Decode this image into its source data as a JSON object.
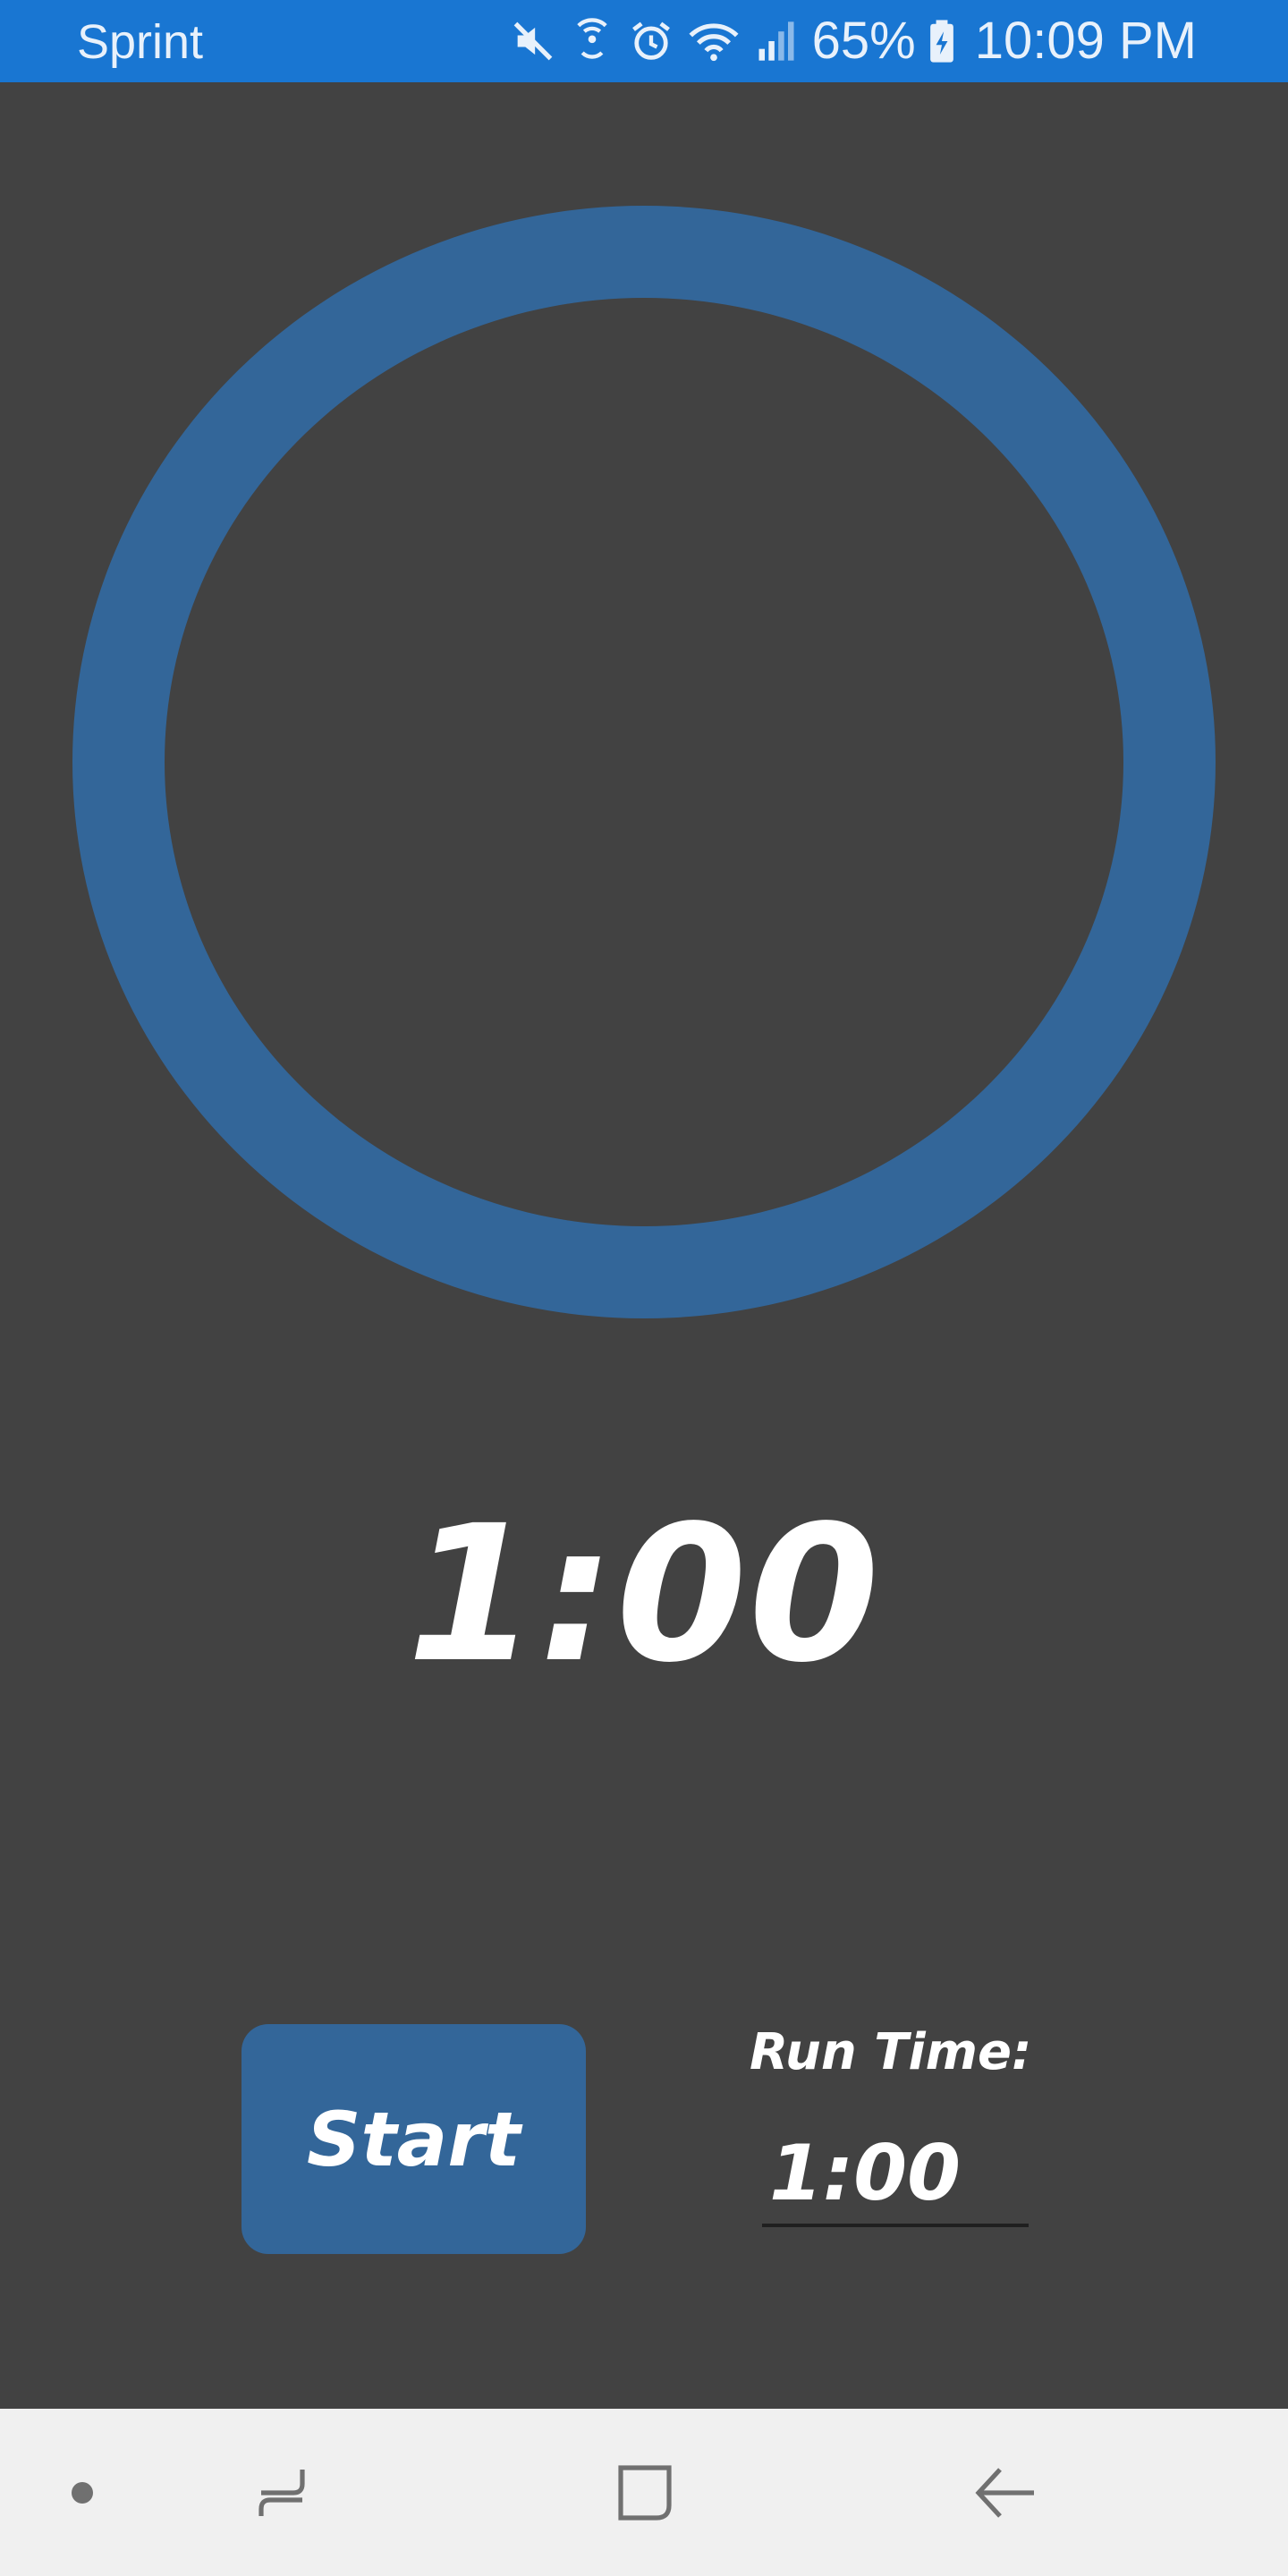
{
  "status_bar": {
    "carrier": "Sprint",
    "battery_percent": "65%",
    "time": "10:09 PM",
    "icons": [
      "mute-icon",
      "hotspot-icon",
      "alarm-icon",
      "wifi-icon",
      "cell-signal-icon",
      "battery-charging-icon"
    ],
    "background_color": "#1976d2"
  },
  "timer": {
    "display": "1:00",
    "ring_color": "#336699",
    "progress": 1.0
  },
  "controls": {
    "start_label": "Start",
    "run_time_label": "Run Time:",
    "run_time_value": "1:00",
    "button_color": "#336699"
  },
  "navigation": {
    "items": [
      "dot-icon",
      "recent-apps-icon",
      "home-icon",
      "back-icon"
    ]
  },
  "theme": {
    "background": "#424242",
    "text": "#ffffff"
  }
}
